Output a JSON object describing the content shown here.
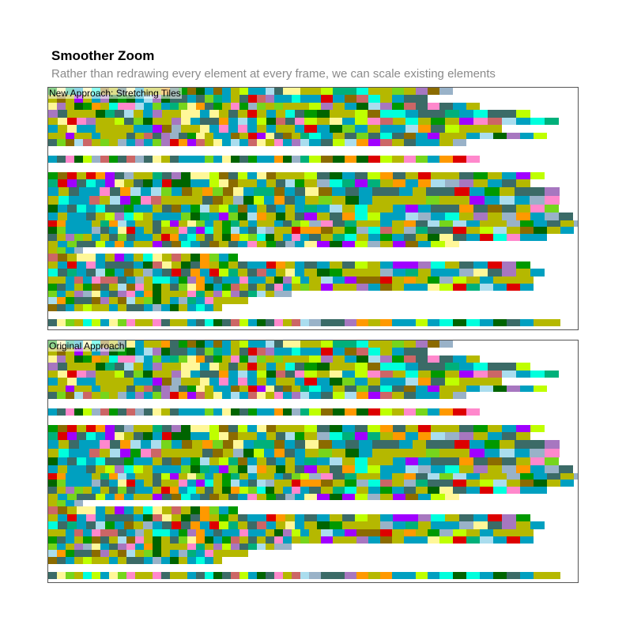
{
  "header": {
    "title": "Smoother Zoom",
    "subtitle": "Rather than redrawing every element at every frame, we can scale existing elements"
  },
  "panels": [
    {
      "label": "New Approach: Stretching Tiles"
    },
    {
      "label": "Original Approach"
    }
  ],
  "palette": [
    "#b5b800",
    "#00a0c0",
    "#3b6b67",
    "#ff88cc",
    "#a777c0",
    "#00ffdd",
    "#aaddee",
    "#fff799",
    "#bfff00",
    "#009900",
    "#a000ff",
    "#00b07a",
    "#ff9900",
    "#dd0000",
    "#cc6666",
    "#8b6b00",
    "#76d51c",
    "#99b2c8",
    "#006400"
  ]
}
